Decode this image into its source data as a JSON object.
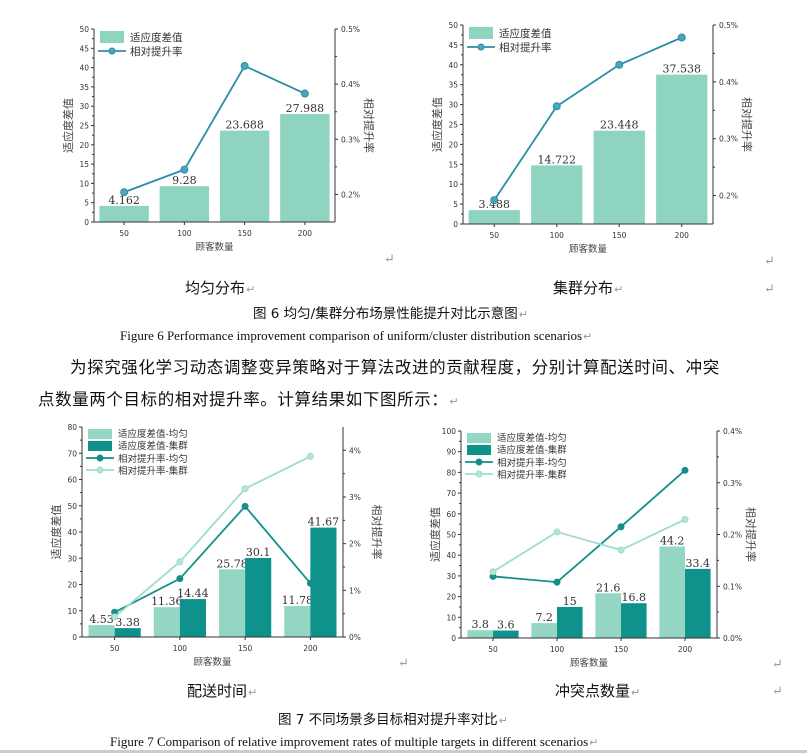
{
  "captions": {
    "fig6_sub_left": "均匀分布",
    "fig6_sub_right": "集群分布",
    "fig6_cn": "图 6  均匀/集群分布场景性能提升对比示意图",
    "fig6_en": "Figure 6 Performance improvement comparison of uniform/cluster distribution scenarios",
    "fig7_sub_left": "配送时间",
    "fig7_sub_right": "冲突点数量",
    "fig7_cn": "图 7  不同场景多目标相对提升率对比",
    "fig7_en": "Figure 7 Comparison of relative improvement rates of multiple targets in different scenarios"
  },
  "paragraph": {
    "line1": "为探究强化学习动态调整变异策略对于算法改进的贡献程度，分别计算配送时间、冲突",
    "line2": "点数量两个目标的相对提升率。计算结果如下图所示："
  },
  "chart_data": [
    {
      "type": "bar",
      "title": "均匀分布",
      "xlabel": "顾客数量",
      "ylabel": "适应度差值",
      "y2label": "相对提升率",
      "categories": [
        "50",
        "100",
        "150",
        "200"
      ],
      "ylim": [
        0,
        50
      ],
      "y_step": 5,
      "y2lim": [
        0.15,
        0.5
      ],
      "y2_tick_values": [
        0.2,
        0.3,
        0.4,
        0.5
      ],
      "y2_tick_labels": [
        "0.2%",
        "0.3%",
        "0.4%",
        "0.5%"
      ],
      "bar_series": [
        {
          "name": "适应度差值",
          "values": [
            4.162,
            9.28,
            23.688,
            27.988
          ],
          "labels": [
            "4.162",
            "9.28",
            "23.688",
            "27.988"
          ],
          "color": "#8fd3c1"
        }
      ],
      "line_series": [
        {
          "name": "相对提升率",
          "values": [
            0.204,
            0.245,
            0.433,
            0.383
          ],
          "color": "#2b8ea6",
          "marker": "#4aa6c0"
        }
      ],
      "legend": "top-left"
    },
    {
      "type": "bar",
      "title": "集群分布",
      "xlabel": "顾客数量",
      "ylabel": "适应度差值",
      "y2label": "相对提升率",
      "categories": [
        "50",
        "100",
        "150",
        "200"
      ],
      "ylim": [
        0,
        50
      ],
      "y_step": 5,
      "y2lim": [
        0.15,
        0.5
      ],
      "y2_tick_values": [
        0.2,
        0.3,
        0.4,
        0.5
      ],
      "y2_tick_labels": [
        "0.2%",
        "0.3%",
        "0.4%",
        "0.5%"
      ],
      "bar_series": [
        {
          "name": "适应度差值",
          "values": [
            3.488,
            14.722,
            23.448,
            37.538
          ],
          "labels": [
            "3.488",
            "14.722",
            "23.448",
            "37.538"
          ],
          "color": "#8fd3c1"
        }
      ],
      "line_series": [
        {
          "name": "相对提升率",
          "values": [
            0.192,
            0.357,
            0.43,
            0.478
          ],
          "color": "#2b8ea6",
          "marker": "#4aa6c0"
        }
      ],
      "legend": "top-left"
    },
    {
      "type": "bar",
      "title": "配送时间",
      "xlabel": "顾客数量",
      "ylabel": "适应度差值",
      "y2label": "相对提升率",
      "categories": [
        "50",
        "100",
        "150",
        "200"
      ],
      "ylim": [
        0,
        80
      ],
      "y_step": 10,
      "y2lim": [
        0,
        4.5
      ],
      "y2_tick_values": [
        0,
        1,
        2,
        3,
        4
      ],
      "y2_tick_labels": [
        "0%",
        "1%",
        "2%",
        "3%",
        "4%"
      ],
      "bar_series": [
        {
          "name": "适应度差值-均匀",
          "values": [
            4.53,
            11.36,
            25.78,
            11.78
          ],
          "labels": [
            "4.53",
            "11.36",
            "25.78",
            "11.78"
          ],
          "color": "#93d6c4"
        },
        {
          "name": "适应度差值-集群",
          "values": [
            3.38,
            14.44,
            30.1,
            41.67
          ],
          "labels": [
            "3.38",
            "14.44",
            "30.1",
            "41.67"
          ],
          "color": "#0f918c"
        }
      ],
      "line_series": [
        {
          "name": "相对提升率-均匀",
          "values": [
            0.53,
            1.25,
            2.8,
            1.15
          ],
          "color": "#148f8a",
          "marker": "#148f8a"
        },
        {
          "name": "相对提升率-集群",
          "values": [
            0.43,
            1.61,
            3.18,
            3.87
          ],
          "color": "#9fdcc9",
          "marker": "#b5e5d6"
        }
      ],
      "legend": "top-left"
    },
    {
      "type": "bar",
      "title": "冲突点数量",
      "xlabel": "顾客数量",
      "ylabel": "适应度差值",
      "y2label": "相对提升率",
      "categories": [
        "50",
        "100",
        "150",
        "200"
      ],
      "ylim": [
        0,
        100
      ],
      "y_step": 10,
      "y2lim": [
        0,
        0.4
      ],
      "y2_tick_values": [
        0,
        0.1,
        0.2,
        0.3,
        0.4
      ],
      "y2_tick_labels": [
        "0.0%",
        "0.1%",
        "0.2%",
        "0.3%",
        "0.4%"
      ],
      "bar_series": [
        {
          "name": "适应度差值-均匀",
          "values": [
            3.8,
            7.2,
            21.6,
            44.2
          ],
          "labels": [
            "3.8",
            "7.2",
            "21.6",
            "44.2"
          ],
          "color": "#93d6c4"
        },
        {
          "name": "适应度差值-集群",
          "values": [
            3.6,
            15,
            16.8,
            33.4
          ],
          "labels": [
            "3.6",
            "15",
            "16.8",
            "33.4"
          ],
          "color": "#0f918c"
        }
      ],
      "line_series": [
        {
          "name": "相对提升率-均匀",
          "values": [
            0.119,
            0.108,
            0.215,
            0.324
          ],
          "color": "#148f8a",
          "marker": "#148f8a"
        },
        {
          "name": "相对提升率-集群",
          "values": [
            0.128,
            0.205,
            0.17,
            0.229
          ],
          "color": "#9fdcc9",
          "marker": "#b5e5d6"
        }
      ],
      "legend": "top-left"
    }
  ]
}
